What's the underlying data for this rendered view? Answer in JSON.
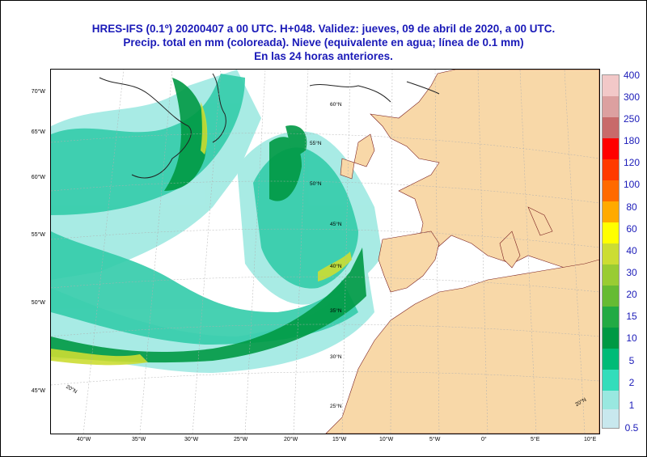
{
  "title": {
    "line1": "HRES-IFS (0.1º) 20200407 a 00 UTC.  H+048. Validez: jueves, 09 de abril de 2020,  a  00 UTC.",
    "line2": "Precip. total en mm (coloreada). Nieve (equivalente en agua; línea de 0.1 mm)",
    "line3": "En las 24 horas anteriores."
  },
  "axes": {
    "lon_ticks": [
      "40°W",
      "35°W",
      "30°W",
      "25°W",
      "20°W",
      "15°W",
      "10°W",
      "5°W",
      "0°",
      "5°E",
      "10°E"
    ],
    "lat_left": [
      "70°W",
      "65°W",
      "60°W",
      "55°W",
      "50°W",
      "45°W"
    ],
    "lat_inner": [
      "55°N",
      "50°N",
      "45°N",
      "40°N",
      "35°N",
      "30°N",
      "25°N"
    ],
    "lat_inner_right": [
      "60°N"
    ],
    "corner": [
      "20°N",
      "20°N"
    ]
  },
  "legend": {
    "labels": [
      "400",
      "300",
      "250",
      "180",
      "120",
      "100",
      "80",
      "60",
      "40",
      "30",
      "20",
      "15",
      "10",
      "5",
      "2",
      "1",
      "0.5"
    ],
    "colors": [
      "#f2c8c8",
      "#dca0a0",
      "#c86a6a",
      "#ff0000",
      "#ff3a00",
      "#ff6a00",
      "#ffaa00",
      "#ffff00",
      "#ccdd33",
      "#99cc33",
      "#66bb33",
      "#22aa44",
      "#009944",
      "#00bb77",
      "#33ddbb",
      "#99e8e0",
      "#c8e8ee"
    ]
  },
  "colors": {
    "land": "#f8d8a8",
    "border": "#7a2020",
    "sea": "#ffffff",
    "title": "#1a1ab8"
  }
}
